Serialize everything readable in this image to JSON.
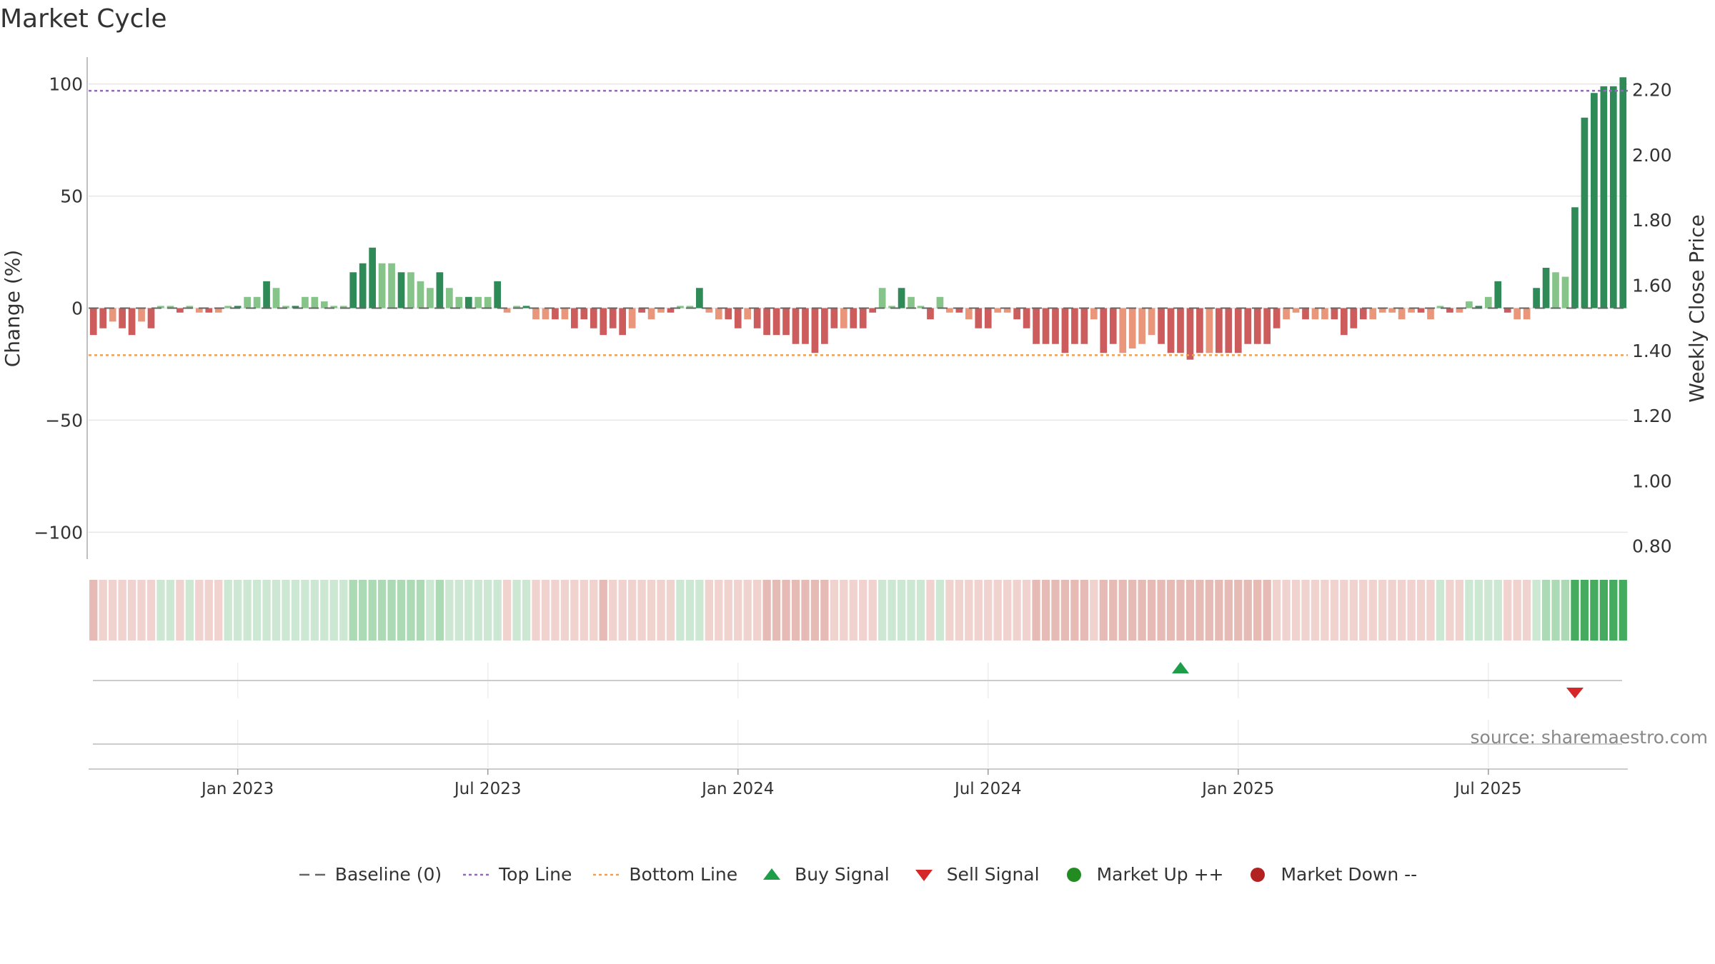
{
  "chart_data": {
    "title": "Market Cycle",
    "type": "bar",
    "ylabel": "Change (%)",
    "ylabel_right": "Weekly Close Price",
    "ylim": [
      -112,
      112
    ],
    "yticks": [
      "100",
      "50",
      "0",
      "−50",
      "−100"
    ],
    "yticks_values": [
      100,
      50,
      0,
      -50,
      -100
    ],
    "y2lim": [
      0.76,
      2.3
    ],
    "y2ticks": [
      "2.20",
      "2.00",
      "1.80",
      "1.60",
      "1.40",
      "1.20",
      "1.00",
      "0.80"
    ],
    "y2ticks_values": [
      2.2,
      2.0,
      1.8,
      1.6,
      1.4,
      1.2,
      1.0,
      0.8
    ],
    "xticks": [
      "Jan 2023",
      "Jul 2023",
      "Jan 2024",
      "Jul 2024",
      "Jan 2025",
      "Jul 2025"
    ],
    "xticks_index": [
      15,
      41,
      67,
      93,
      119,
      145
    ],
    "top_line": 97,
    "bottom_line": -21,
    "grid": true,
    "legend_position": "bottom",
    "values": [
      -12,
      -9,
      -6,
      -9,
      -12,
      -6,
      -9,
      1,
      1,
      -2,
      1,
      -2,
      -2,
      -2,
      1,
      1,
      5,
      5,
      12,
      9,
      1,
      1,
      5,
      5,
      3,
      1,
      1,
      16,
      20,
      27,
      20,
      20,
      16,
      16,
      12,
      9,
      16,
      9,
      5,
      5,
      5,
      5,
      12,
      -2,
      1,
      1,
      -5,
      -5,
      -5,
      -5,
      -9,
      -5,
      -9,
      -12,
      -9,
      -12,
      -9,
      -2,
      -5,
      -2,
      -2,
      1,
      1,
      9,
      -2,
      -5,
      -5,
      -9,
      -5,
      -9,
      -12,
      -12,
      -12,
      -16,
      -16,
      -20,
      -16,
      -9,
      -9,
      -9,
      -9,
      -2,
      9,
      1,
      9,
      5,
      1,
      -5,
      5,
      -2,
      -2,
      -5,
      -9,
      -9,
      -2,
      -2,
      -5,
      -9,
      -16,
      -16,
      -16,
      -20,
      -16,
      -16,
      -5,
      -20,
      -16,
      -20,
      -18,
      -16,
      -12,
      -16,
      -20,
      -20,
      -23,
      -20,
      -20,
      -20,
      -20,
      -20,
      -16,
      -16,
      -16,
      -9,
      -5,
      -2,
      -5,
      -5,
      -5,
      -5,
      -12,
      -9,
      -5,
      -5,
      -2,
      -2,
      -5,
      -2,
      -2,
      -5,
      1,
      -2,
      -2,
      3,
      1,
      5,
      12,
      -2,
      -5,
      -5,
      9,
      18,
      16,
      14,
      45,
      85,
      96,
      99,
      99,
      103
    ],
    "cycle_strength": [
      -2,
      -1,
      -1,
      -1,
      -1,
      -1,
      -1,
      1,
      1,
      -1,
      1,
      -1,
      -1,
      -1,
      1,
      1,
      1,
      1,
      1,
      1,
      1,
      1,
      1,
      1,
      1,
      1,
      1,
      2,
      2,
      2,
      2,
      2,
      2,
      2,
      2,
      1,
      2,
      1,
      1,
      1,
      1,
      1,
      1,
      -1,
      1,
      1,
      -1,
      -1,
      -1,
      -1,
      -1,
      -1,
      -1,
      -2,
      -1,
      -1,
      -1,
      -1,
      -1,
      -1,
      -1,
      1,
      1,
      1,
      -1,
      -1,
      -1,
      -1,
      -1,
      -1,
      -2,
      -2,
      -2,
      -2,
      -2,
      -2,
      -2,
      -1,
      -1,
      -1,
      -1,
      -1,
      1,
      1,
      1,
      1,
      1,
      -1,
      1,
      -1,
      -1,
      -1,
      -1,
      -1,
      -1,
      -1,
      -1,
      -1,
      -2,
      -2,
      -2,
      -2,
      -2,
      -2,
      -1,
      -2,
      -2,
      -2,
      -2,
      -2,
      -2,
      -2,
      -2,
      -2,
      -2,
      -2,
      -2,
      -2,
      -2,
      -2,
      -2,
      -2,
      -2,
      -1,
      -1,
      -1,
      -1,
      -1,
      -1,
      -1,
      -1,
      -1,
      -1,
      -1,
      -1,
      -1,
      -1,
      -1,
      -1,
      -1,
      1,
      -1,
      -1,
      1,
      1,
      1,
      1,
      -1,
      -1,
      -1,
      1,
      2,
      2,
      2,
      3,
      3,
      3,
      3,
      3,
      3
    ],
    "buy_signals": [
      113
    ],
    "sell_signals": [
      154
    ]
  },
  "legend": [
    {
      "label": "Baseline (0)",
      "icon": "baseline-dash-icon",
      "color": "#666666"
    },
    {
      "label": "Top Line",
      "icon": "dotted-line-icon",
      "color": "#9467bd"
    },
    {
      "label": "Bottom Line",
      "icon": "dotted-line-icon",
      "color": "#f0a050"
    },
    {
      "label": "Buy Signal",
      "icon": "triangle-up-icon",
      "color": "#1f9e4a"
    },
    {
      "label": "Sell Signal",
      "icon": "triangle-down-icon",
      "color": "#d62728"
    },
    {
      "label": "Market Up ++",
      "icon": "circle-icon",
      "color": "#228b22"
    },
    {
      "label": "Market Down --",
      "icon": "circle-icon",
      "color": "#b22222"
    }
  ],
  "colors": {
    "strong_up": "#2e8b57",
    "weak_up": "#86c48a",
    "strong_down": "#cd5c5c",
    "weak_down": "#e9967a",
    "top_line": "#9467bd",
    "bottom_line": "#f0a050"
  },
  "source": "source: sharemaestro.com"
}
